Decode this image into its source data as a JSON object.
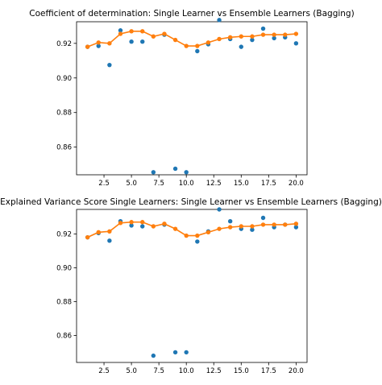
{
  "chart_data": [
    {
      "type": "scatter",
      "title": "Coefficient of determination: Single Learner vs Ensemble Learners (Bagging)",
      "xlabel": "",
      "ylabel": "",
      "xlim": [
        0,
        21
      ],
      "ylim": [
        0.844,
        0.9325
      ],
      "xticks": [
        2.5,
        5.0,
        7.5,
        10.0,
        12.5,
        15.0,
        17.5,
        20.0
      ],
      "xtick_labels": [
        "2.5",
        "5.0",
        "7.5",
        "10.0",
        "12.5",
        "15.0",
        "17.5",
        "20.0"
      ],
      "yticks": [
        0.86,
        0.88,
        0.9,
        0.92
      ],
      "ytick_labels": [
        "0.86",
        "0.88",
        "0.90",
        "0.92"
      ],
      "grid": false,
      "legend": "none",
      "series": [
        {
          "kind": "scatter",
          "color": "#1f77b4",
          "x": [
            1,
            2,
            3,
            4,
            5,
            6,
            7,
            8,
            9,
            10,
            11,
            12,
            13,
            14,
            15,
            16,
            17,
            18,
            19,
            20
          ],
          "y": [
            0.918,
            0.9185,
            0.9075,
            0.9275,
            0.921,
            0.921,
            0.8455,
            0.925,
            0.8475,
            0.8455,
            0.9155,
            0.9195,
            0.9335,
            0.9225,
            0.918,
            0.922,
            0.9285,
            0.923,
            0.9235,
            0.92
          ]
        },
        {
          "kind": "line",
          "color": "#ff7f0e",
          "x": [
            1,
            2,
            3,
            4,
            5,
            6,
            7,
            8,
            9,
            10,
            11,
            12,
            13,
            14,
            15,
            16,
            17,
            18,
            19,
            20
          ],
          "y": [
            0.918,
            0.9205,
            0.92,
            0.9255,
            0.927,
            0.927,
            0.924,
            0.9255,
            0.922,
            0.9185,
            0.9185,
            0.9205,
            0.9225,
            0.9235,
            0.924,
            0.924,
            0.925,
            0.925,
            0.925,
            0.9255
          ]
        }
      ]
    },
    {
      "type": "scatter",
      "title": "Explained Variance Score Single Learners: Single Learner vs Ensemble Learners (Bagging)",
      "xlabel": "",
      "ylabel": "",
      "xlim": [
        0,
        21
      ],
      "ylim": [
        0.844,
        0.9345
      ],
      "xticks": [
        2.5,
        5.0,
        7.5,
        10.0,
        12.5,
        15.0,
        17.5,
        20.0
      ],
      "xtick_labels": [
        "2.5",
        "5.0",
        "7.5",
        "10.0",
        "12.5",
        "15.0",
        "17.5",
        "20.0"
      ],
      "yticks": [
        0.86,
        0.88,
        0.9,
        0.92
      ],
      "ytick_labels": [
        "0.86",
        "0.88",
        "0.90",
        "0.92"
      ],
      "grid": false,
      "legend": "none",
      "series": [
        {
          "kind": "scatter",
          "color": "#1f77b4",
          "x": [
            1,
            2,
            3,
            4,
            5,
            6,
            7,
            8,
            9,
            10,
            11,
            12,
            13,
            14,
            15,
            16,
            17,
            18,
            19,
            20
          ],
          "y": [
            0.918,
            0.9205,
            0.916,
            0.9275,
            0.925,
            0.9245,
            0.848,
            0.9255,
            0.85,
            0.85,
            0.9155,
            0.9215,
            0.9345,
            0.9275,
            0.923,
            0.9225,
            0.9295,
            0.924,
            0.9255,
            0.924
          ]
        },
        {
          "kind": "line",
          "color": "#ff7f0e",
          "x": [
            1,
            2,
            3,
            4,
            5,
            6,
            7,
            8,
            9,
            10,
            11,
            12,
            13,
            14,
            15,
            16,
            17,
            18,
            19,
            20
          ],
          "y": [
            0.918,
            0.921,
            0.9215,
            0.9265,
            0.927,
            0.927,
            0.9245,
            0.926,
            0.923,
            0.919,
            0.919,
            0.921,
            0.923,
            0.924,
            0.9245,
            0.9245,
            0.9255,
            0.9255,
            0.9255,
            0.926
          ]
        }
      ]
    }
  ]
}
